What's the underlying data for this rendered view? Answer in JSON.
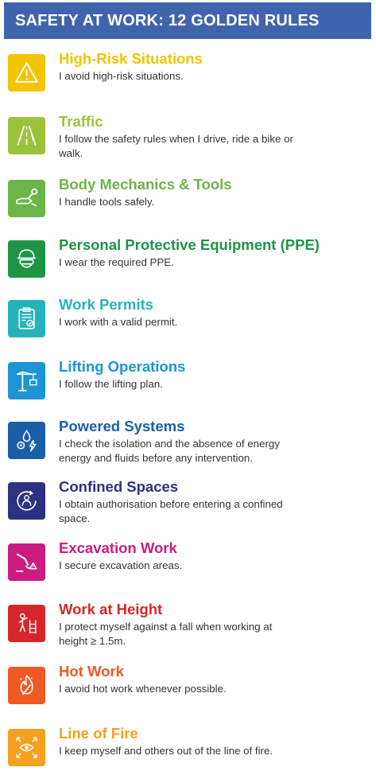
{
  "header": {
    "title": "SAFETY AT WORK: 12 GOLDEN RULES"
  },
  "rules": [
    {
      "title": "High-Risk Situations",
      "description": "I avoid high-risk situations.",
      "color": "#f5c400",
      "icon": "warning-triangle-icon"
    },
    {
      "title": "Traffic",
      "description": "I follow the safety rules when I drive, ride a bike or walk.",
      "color": "#9bc33c",
      "icon": "road-icon"
    },
    {
      "title": "Body Mechanics & Tools",
      "description": "I handle tools safely.",
      "color": "#6cb548",
      "icon": "hand-wrench-icon"
    },
    {
      "title": "Personal Protective Equipment (PPE)",
      "description": "I wear the required PPE.",
      "color": "#1e9444",
      "icon": "helmet-goggles-icon"
    },
    {
      "title": "Work Permits",
      "description": "I work with a valid permit.",
      "color": "#26b2bb",
      "icon": "clipboard-check-icon"
    },
    {
      "title": "Lifting Operations",
      "description": "I follow the lifting plan.",
      "color": "#1b95d3",
      "icon": "crane-icon"
    },
    {
      "title": "Powered Systems",
      "description": "I check the isolation and the absence of energy energy and fluids before any intervention.",
      "color": "#1a5ea8",
      "icon": "energy-drop-gear-icon"
    },
    {
      "title": "Confined Spaces",
      "description": "I obtain authorisation before entering a confined space.",
      "color": "#2d3181",
      "icon": "person-in-circle-icon"
    },
    {
      "title": "Excavation Work",
      "description": "I secure excavation areas.",
      "color": "#cc1c82",
      "icon": "excavator-icon"
    },
    {
      "title": "Work at Height",
      "description": "I protect myself against a fall when working at height ≥ 1.5m.",
      "color": "#d7262a",
      "icon": "worker-ladder-icon"
    },
    {
      "title": "Hot Work",
      "description": "I avoid hot work whenever possible.",
      "color": "#ee5a24",
      "icon": "flame-icon"
    },
    {
      "title": "Line of Fire",
      "description": "I keep myself and others out of the line of fire.",
      "color": "#f5a11f",
      "icon": "eye-arrows-icon"
    }
  ]
}
